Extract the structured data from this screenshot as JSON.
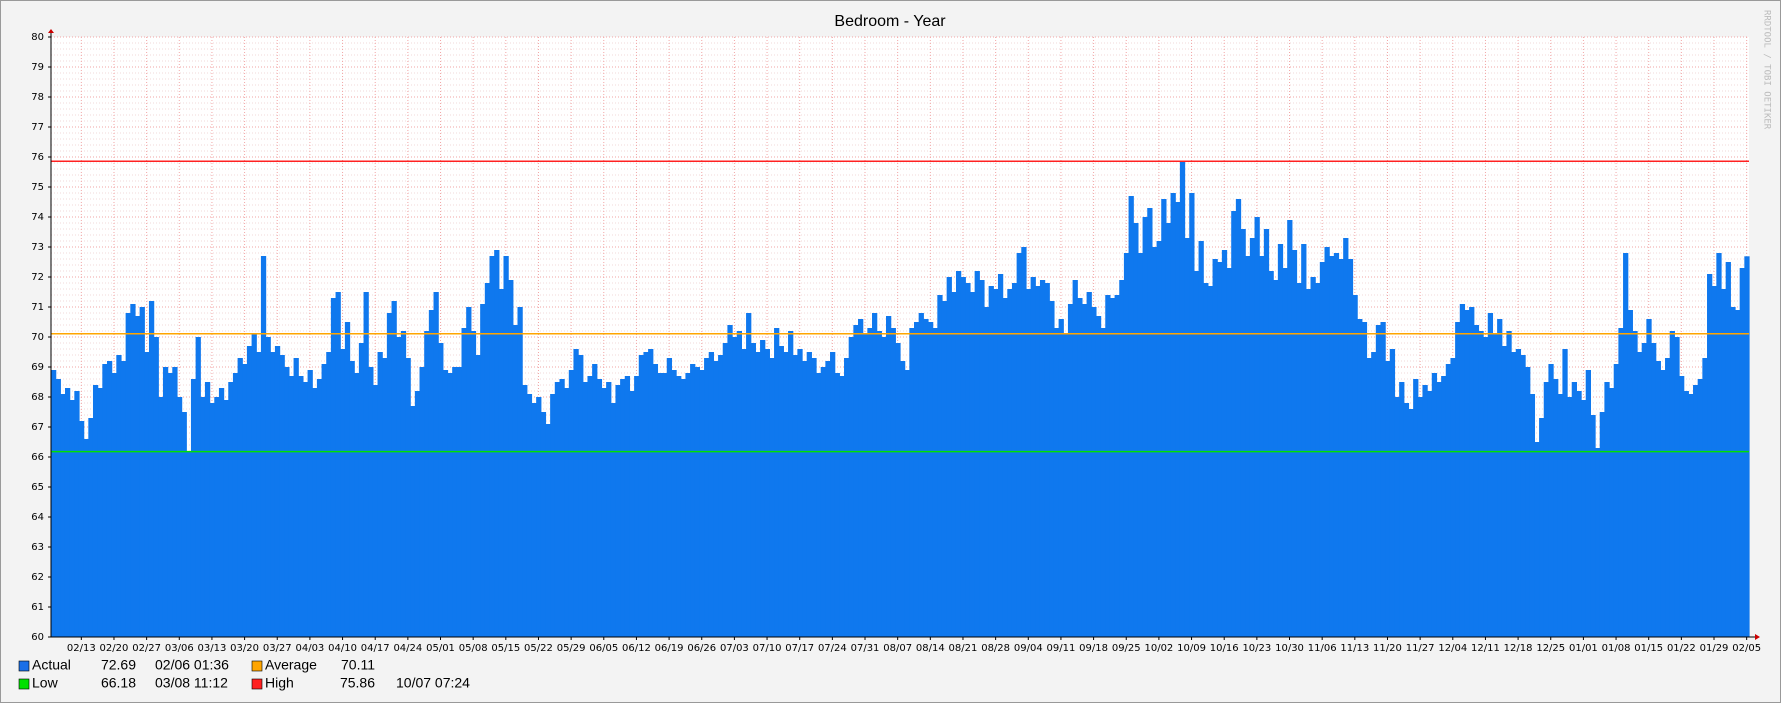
{
  "chart_data": {
    "type": "area",
    "title": "Bedroom - Year",
    "watermark": "RRDTOOL / TOBI OETIKER",
    "categories": [
      null,
      null,
      null,
      null,
      null,
      null,
      "02/13",
      null,
      null,
      null,
      null,
      null,
      null,
      "02/20",
      null,
      null,
      null,
      null,
      null,
      null,
      "02/27",
      null,
      null,
      null,
      null,
      null,
      null,
      "03/06",
      null,
      null,
      null,
      null,
      null,
      null,
      "03/13",
      null,
      null,
      null,
      null,
      null,
      null,
      "03/20",
      null,
      null,
      null,
      null,
      null,
      null,
      "03/27",
      null,
      null,
      null,
      null,
      null,
      null,
      "04/03",
      null,
      null,
      null,
      null,
      null,
      null,
      "04/10",
      null,
      null,
      null,
      null,
      null,
      null,
      "04/17",
      null,
      null,
      null,
      null,
      null,
      null,
      "04/24",
      null,
      null,
      null,
      null,
      null,
      null,
      "05/01",
      null,
      null,
      null,
      null,
      null,
      null,
      "05/08",
      null,
      null,
      null,
      null,
      null,
      null,
      "05/15",
      null,
      null,
      null,
      null,
      null,
      null,
      "05/22",
      null,
      null,
      null,
      null,
      null,
      null,
      "05/29",
      null,
      null,
      null,
      null,
      null,
      null,
      "06/05",
      null,
      null,
      null,
      null,
      null,
      null,
      "06/12",
      null,
      null,
      null,
      null,
      null,
      null,
      "06/19",
      null,
      null,
      null,
      null,
      null,
      null,
      "06/26",
      null,
      null,
      null,
      null,
      null,
      null,
      "07/03",
      null,
      null,
      null,
      null,
      null,
      null,
      "07/10",
      null,
      null,
      null,
      null,
      null,
      null,
      "07/17",
      null,
      null,
      null,
      null,
      null,
      null,
      "07/24",
      null,
      null,
      null,
      null,
      null,
      null,
      "07/31",
      null,
      null,
      null,
      null,
      null,
      null,
      "08/07",
      null,
      null,
      null,
      null,
      null,
      null,
      "08/14",
      null,
      null,
      null,
      null,
      null,
      null,
      "08/21",
      null,
      null,
      null,
      null,
      null,
      null,
      "08/28",
      null,
      null,
      null,
      null,
      null,
      null,
      "09/04",
      null,
      null,
      null,
      null,
      null,
      null,
      "09/11",
      null,
      null,
      null,
      null,
      null,
      null,
      "09/18",
      null,
      null,
      null,
      null,
      null,
      null,
      "09/25",
      null,
      null,
      null,
      null,
      null,
      null,
      "10/02",
      null,
      null,
      null,
      null,
      null,
      null,
      "10/09",
      null,
      null,
      null,
      null,
      null,
      null,
      "10/16",
      null,
      null,
      null,
      null,
      null,
      null,
      "10/23",
      null,
      null,
      null,
      null,
      null,
      null,
      "10/30",
      null,
      null,
      null,
      null,
      null,
      null,
      "11/06",
      null,
      null,
      null,
      null,
      null,
      null,
      "11/13",
      null,
      null,
      null,
      null,
      null,
      null,
      "11/20",
      null,
      null,
      null,
      null,
      null,
      null,
      "11/27",
      null,
      null,
      null,
      null,
      null,
      null,
      "12/04",
      null,
      null,
      null,
      null,
      null,
      null,
      "12/11",
      null,
      null,
      null,
      null,
      null,
      null,
      "12/18",
      null,
      null,
      null,
      null,
      null,
      null,
      "12/25",
      null,
      null,
      null,
      null,
      null,
      null,
      "01/01",
      null,
      null,
      null,
      null,
      null,
      null,
      "01/08",
      null,
      null,
      null,
      null,
      null,
      null,
      "01/15",
      null,
      null,
      null,
      null,
      null,
      null,
      "01/22",
      null,
      null,
      null,
      null,
      null,
      null,
      "01/29",
      null,
      null,
      null,
      null,
      null,
      null,
      "02/05"
    ],
    "series": [
      {
        "name": "Actual",
        "color": "#0f78ee",
        "values": [
          68.9,
          68.6,
          68.1,
          68.3,
          67.9,
          68.2,
          67.2,
          66.6,
          67.3,
          68.4,
          68.3,
          69.1,
          69.2,
          68.8,
          69.4,
          69.2,
          70.8,
          71.1,
          70.7,
          71.0,
          69.5,
          71.2,
          70.0,
          68.0,
          69.0,
          68.8,
          69.0,
          68.0,
          67.5,
          66.18,
          68.6,
          70.0,
          68.0,
          68.5,
          67.8,
          68.0,
          68.3,
          67.9,
          68.5,
          68.8,
          69.3,
          69.1,
          69.7,
          70.1,
          69.5,
          72.7,
          70.0,
          69.5,
          69.7,
          69.4,
          69.0,
          68.7,
          69.3,
          68.7,
          68.5,
          68.9,
          68.3,
          68.6,
          69.1,
          69.5,
          71.3,
          71.5,
          69.6,
          70.5,
          69.2,
          68.8,
          69.8,
          71.5,
          69.0,
          68.4,
          69.5,
          69.3,
          70.8,
          71.2,
          70.0,
          70.2,
          69.3,
          67.7,
          68.2,
          69.0,
          70.2,
          70.9,
          71.5,
          69.8,
          68.9,
          68.8,
          69.0,
          69.0,
          70.3,
          71.0,
          70.2,
          69.4,
          71.1,
          71.8,
          72.7,
          72.9,
          71.6,
          72.7,
          71.9,
          70.4,
          71.0,
          68.4,
          68.1,
          67.8,
          68.0,
          67.5,
          67.1,
          68.1,
          68.5,
          68.6,
          68.3,
          68.9,
          69.6,
          69.4,
          68.5,
          68.7,
          69.1,
          68.6,
          68.3,
          68.5,
          67.8,
          68.4,
          68.6,
          68.7,
          68.2,
          68.7,
          69.4,
          69.5,
          69.6,
          69.1,
          68.8,
          68.8,
          69.3,
          68.9,
          68.7,
          68.6,
          68.8,
          69.1,
          69.0,
          68.9,
          69.3,
          69.5,
          69.2,
          69.4,
          69.8,
          70.4,
          70.0,
          70.2,
          69.6,
          70.8,
          69.8,
          69.5,
          69.9,
          69.6,
          69.3,
          70.3,
          69.7,
          69.5,
          70.2,
          69.4,
          69.6,
          69.2,
          69.5,
          69.3,
          68.8,
          69.0,
          69.2,
          69.5,
          68.8,
          68.7,
          69.3,
          70.0,
          70.4,
          70.6,
          70.1,
          70.3,
          70.8,
          70.2,
          70.0,
          70.7,
          70.3,
          69.8,
          69.2,
          68.9,
          70.3,
          70.5,
          70.8,
          70.6,
          70.5,
          70.3,
          71.4,
          71.2,
          72.0,
          71.5,
          72.2,
          72.0,
          71.8,
          71.5,
          72.2,
          71.9,
          71.0,
          71.7,
          71.6,
          72.1,
          71.3,
          71.6,
          71.8,
          72.8,
          73.0,
          71.6,
          72.0,
          71.7,
          71.9,
          71.8,
          71.2,
          70.3,
          70.6,
          70.1,
          71.1,
          71.9,
          71.3,
          71.1,
          71.5,
          71.0,
          70.7,
          70.3,
          71.4,
          71.3,
          71.4,
          71.9,
          72.8,
          74.7,
          73.8,
          72.8,
          74.0,
          74.3,
          73.0,
          73.2,
          74.6,
          73.8,
          74.8,
          74.5,
          75.86,
          73.3,
          74.8,
          72.2,
          73.2,
          71.8,
          71.7,
          72.6,
          72.5,
          72.9,
          72.3,
          74.2,
          74.6,
          73.6,
          72.7,
          73.3,
          74.0,
          72.7,
          73.6,
          72.2,
          71.9,
          73.1,
          72.3,
          73.9,
          72.9,
          71.8,
          73.1,
          71.6,
          72.0,
          71.8,
          72.5,
          73.0,
          72.7,
          72.8,
          72.6,
          73.3,
          72.6,
          71.4,
          70.6,
          70.5,
          69.3,
          69.5,
          70.4,
          70.5,
          69.2,
          69.6,
          68.0,
          68.5,
          67.8,
          67.6,
          68.6,
          68.0,
          68.4,
          68.2,
          68.8,
          68.5,
          68.7,
          69.1,
          69.3,
          70.5,
          71.1,
          70.9,
          71.0,
          70.4,
          70.2,
          70.0,
          70.8,
          70.1,
          70.6,
          69.7,
          70.2,
          69.5,
          69.6,
          69.4,
          69.0,
          68.1,
          66.5,
          67.3,
          68.5,
          69.1,
          68.6,
          68.1,
          69.6,
          68.0,
          68.5,
          68.2,
          67.9,
          68.9,
          67.4,
          66.3,
          67.5,
          68.5,
          68.3,
          69.1,
          70.3,
          72.8,
          70.9,
          70.2,
          69.5,
          69.8,
          70.6,
          69.8,
          69.2,
          68.9,
          69.3,
          70.2,
          70.0,
          68.7,
          68.2,
          68.1,
          68.4,
          68.6,
          69.3,
          72.1,
          71.7,
          72.8,
          71.6,
          72.5,
          71.0,
          70.9,
          72.3,
          72.69
        ]
      }
    ],
    "ylim": [
      60,
      80
    ],
    "yticks": [
      60,
      61,
      62,
      63,
      64,
      65,
      66,
      67,
      68,
      69,
      70,
      71,
      72,
      73,
      74,
      75,
      76,
      77,
      78,
      79,
      80
    ],
    "grid": true,
    "legend": [
      {
        "name": "Actual",
        "color": "#1a6fe8",
        "value": 72.69,
        "time": "02/06 01:36"
      },
      {
        "name": "Average",
        "color": "#ffa500",
        "value": 70.11
      },
      {
        "name": "Low",
        "color": "#00e000",
        "value": 66.18,
        "time": "03/08 11:12"
      },
      {
        "name": "High",
        "color": "#ff2020",
        "value": 75.86,
        "time": "10/07 07:24"
      }
    ]
  }
}
